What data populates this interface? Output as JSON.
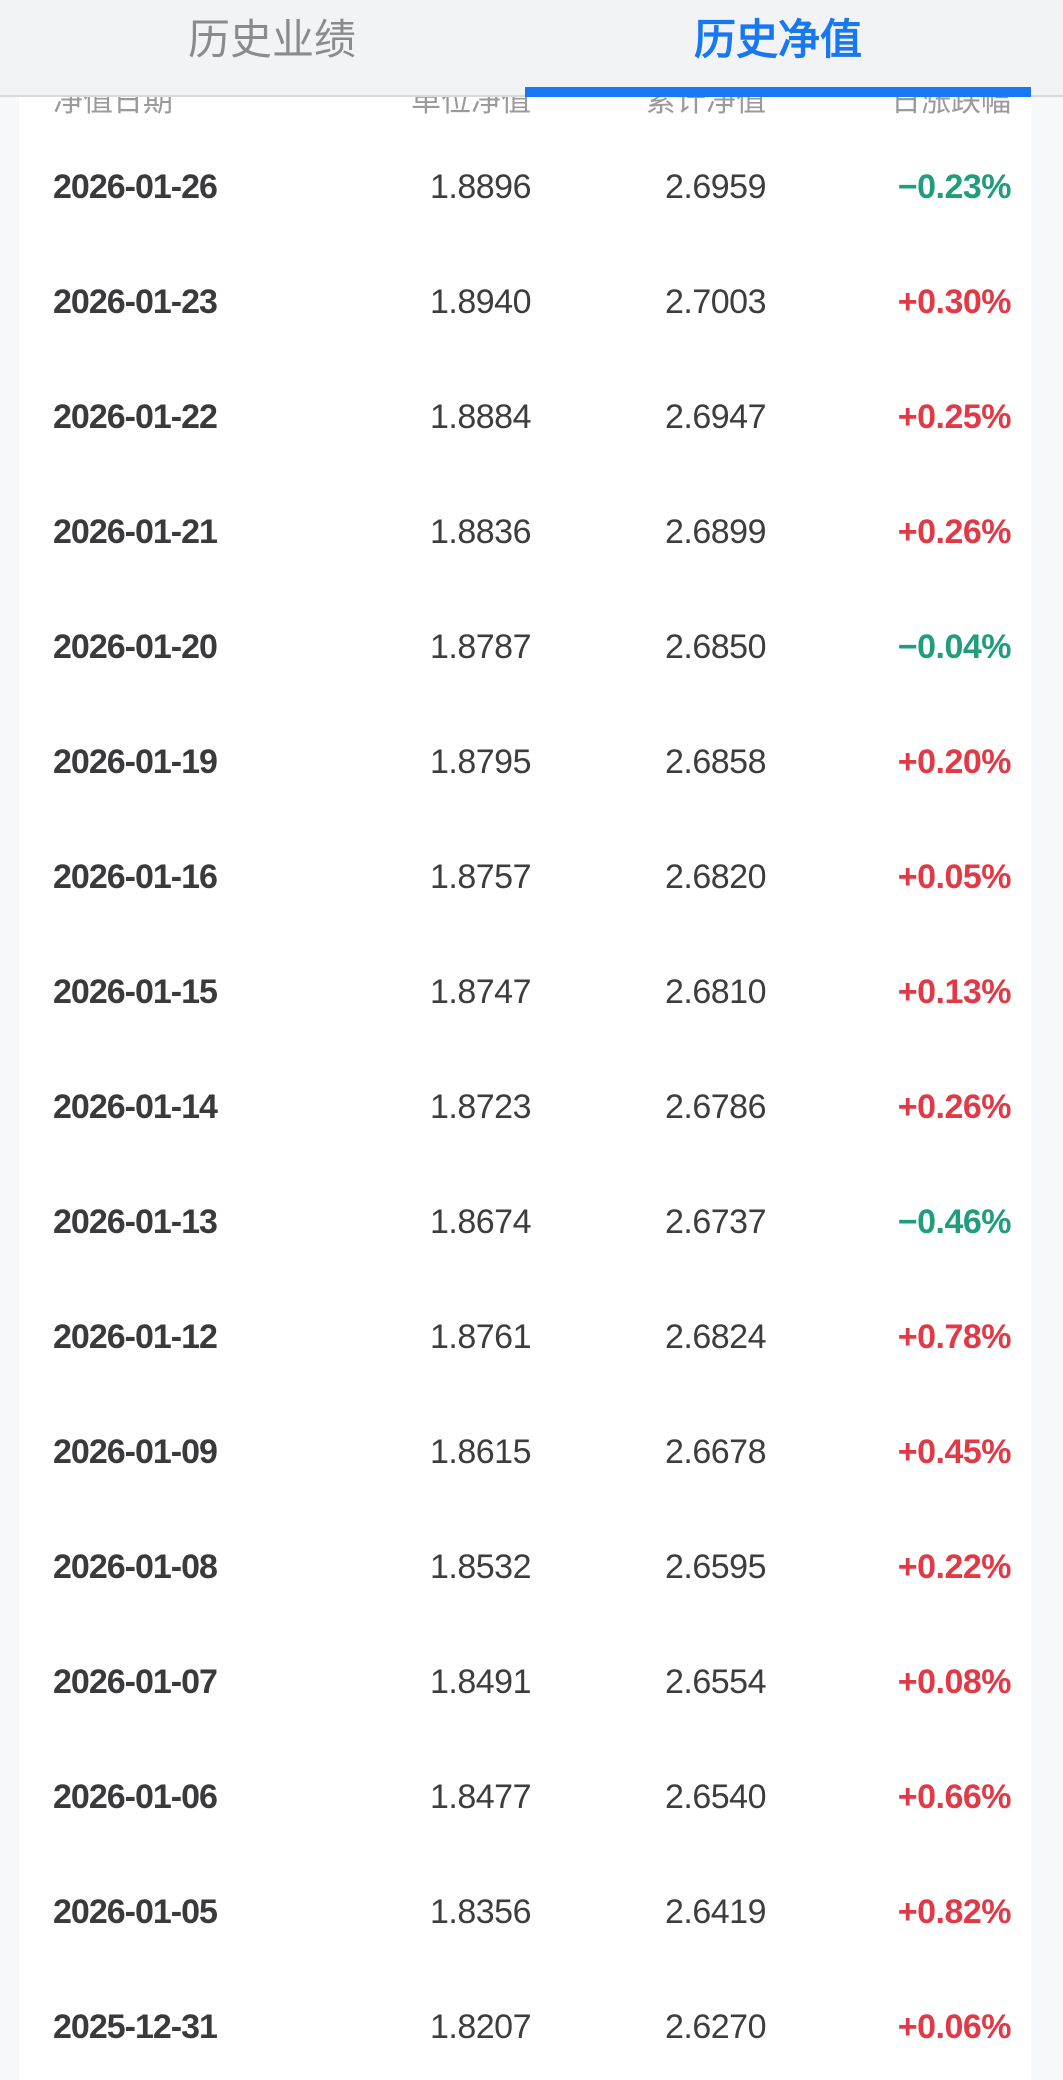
{
  "colors": {
    "accent_blue": "#1877f2",
    "up_red": "#e13945",
    "down_green": "#1f9d7c"
  },
  "tabbar": {
    "tabs": [
      {
        "label": "历史业绩",
        "active": false
      },
      {
        "label": "历史净值",
        "active": true
      }
    ]
  },
  "table": {
    "headers": {
      "date": "净值日期",
      "unit_nav": "单位净值",
      "acc_nav": "累计净值",
      "change": "日涨跌幅"
    },
    "rows": [
      {
        "date": "2026-01-26",
        "unit_nav": "1.8896",
        "acc_nav": "2.6959",
        "change": "−0.23%",
        "direction": "down"
      },
      {
        "date": "2026-01-23",
        "unit_nav": "1.8940",
        "acc_nav": "2.7003",
        "change": "+0.30%",
        "direction": "up"
      },
      {
        "date": "2026-01-22",
        "unit_nav": "1.8884",
        "acc_nav": "2.6947",
        "change": "+0.25%",
        "direction": "up"
      },
      {
        "date": "2026-01-21",
        "unit_nav": "1.8836",
        "acc_nav": "2.6899",
        "change": "+0.26%",
        "direction": "up"
      },
      {
        "date": "2026-01-20",
        "unit_nav": "1.8787",
        "acc_nav": "2.6850",
        "change": "−0.04%",
        "direction": "down"
      },
      {
        "date": "2026-01-19",
        "unit_nav": "1.8795",
        "acc_nav": "2.6858",
        "change": "+0.20%",
        "direction": "up"
      },
      {
        "date": "2026-01-16",
        "unit_nav": "1.8757",
        "acc_nav": "2.6820",
        "change": "+0.05%",
        "direction": "up"
      },
      {
        "date": "2026-01-15",
        "unit_nav": "1.8747",
        "acc_nav": "2.6810",
        "change": "+0.13%",
        "direction": "up"
      },
      {
        "date": "2026-01-14",
        "unit_nav": "1.8723",
        "acc_nav": "2.6786",
        "change": "+0.26%",
        "direction": "up"
      },
      {
        "date": "2026-01-13",
        "unit_nav": "1.8674",
        "acc_nav": "2.6737",
        "change": "−0.46%",
        "direction": "down"
      },
      {
        "date": "2026-01-12",
        "unit_nav": "1.8761",
        "acc_nav": "2.6824",
        "change": "+0.78%",
        "direction": "up"
      },
      {
        "date": "2026-01-09",
        "unit_nav": "1.8615",
        "acc_nav": "2.6678",
        "change": "+0.45%",
        "direction": "up"
      },
      {
        "date": "2026-01-08",
        "unit_nav": "1.8532",
        "acc_nav": "2.6595",
        "change": "+0.22%",
        "direction": "up"
      },
      {
        "date": "2026-01-07",
        "unit_nav": "1.8491",
        "acc_nav": "2.6554",
        "change": "+0.08%",
        "direction": "up"
      },
      {
        "date": "2026-01-06",
        "unit_nav": "1.8477",
        "acc_nav": "2.6540",
        "change": "+0.66%",
        "direction": "up"
      },
      {
        "date": "2026-01-05",
        "unit_nav": "1.8356",
        "acc_nav": "2.6419",
        "change": "+0.82%",
        "direction": "up"
      },
      {
        "date": "2025-12-31",
        "unit_nav": "1.8207",
        "acc_nav": "2.6270",
        "change": "+0.06%",
        "direction": "up"
      }
    ]
  }
}
